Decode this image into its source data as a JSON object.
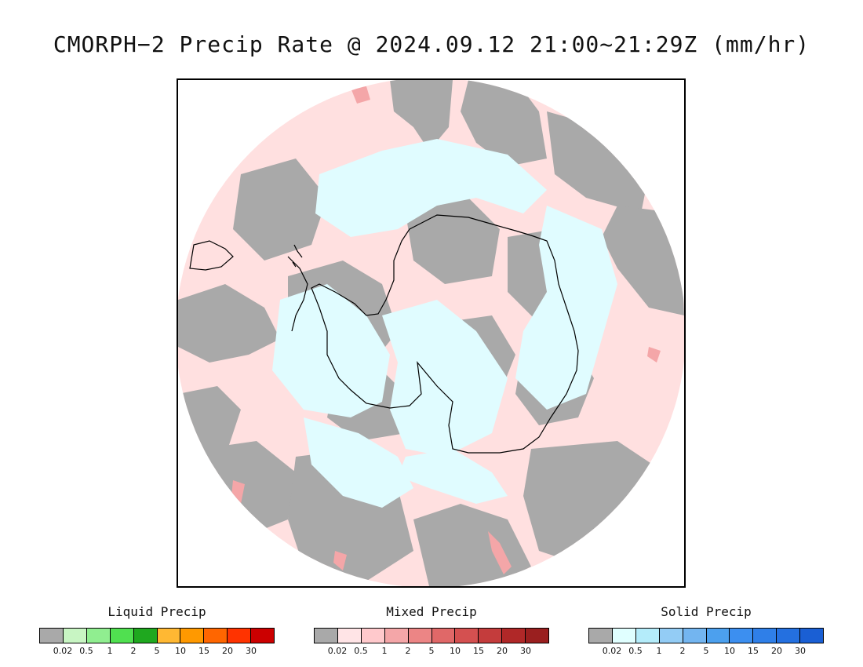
{
  "title": "CMORPH−2 Precip Rate @ 2024.09.12 21:00~21:29Z (mm/hr)",
  "legends": [
    {
      "id": "liquid",
      "title": "Liquid Precip",
      "tick_labels": [
        "0.02",
        "0.5",
        "1",
        "2",
        "5",
        "10",
        "15",
        "20",
        "30"
      ],
      "colors": [
        "#a9a9a9",
        "#c8f5c3",
        "#90ee90",
        "#50e050",
        "#1fa81f",
        "#ffb833",
        "#ff9900",
        "#ff6600",
        "#ff3300",
        "#cc0000"
      ]
    },
    {
      "id": "mixed",
      "title": "Mixed Precip",
      "tick_labels": [
        "0.02",
        "0.5",
        "1",
        "2",
        "5",
        "10",
        "15",
        "20",
        "30"
      ],
      "colors": [
        "#a9a9a9",
        "#ffe4e6",
        "#ffc9cc",
        "#f4a6a8",
        "#ec8585",
        "#e06868",
        "#d45050",
        "#c43c3c",
        "#b02828",
        "#9a1f1f"
      ]
    },
    {
      "id": "solid",
      "title": "Solid Precip",
      "tick_labels": [
        "0.02",
        "0.5",
        "1",
        "2",
        "5",
        "10",
        "15",
        "20",
        "30"
      ],
      "colors": [
        "#a9a9a9",
        "#e0ffff",
        "#b4ecfa",
        "#93ccf5",
        "#73b5f0",
        "#4ca0ee",
        "#3c8ff0",
        "#2f7fe8",
        "#2470e0",
        "#1a5fd4"
      ]
    }
  ],
  "map": {
    "projection": "south-polar-stereographic",
    "colors": {
      "no_data_background": "#ffffff",
      "light_mixed": "#ffe0e0",
      "trace": "#a9a9a9",
      "light_solid": "#e0fcff",
      "moderate_mixed": "#f4a6a8",
      "coastline": "#000000"
    }
  }
}
